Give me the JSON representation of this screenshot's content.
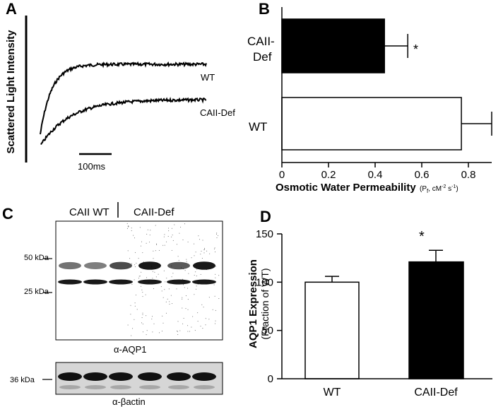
{
  "panels": {
    "A": {
      "letter": "A",
      "ylabel": "Scattered Light Intensity",
      "traces": [
        {
          "name": "WT",
          "label": "WT"
        },
        {
          "name": "CAII-Def",
          "label": "CAII-Def"
        }
      ],
      "scale_bar_label": "100ms"
    },
    "B": {
      "letter": "B",
      "xlabel": "Osmotic Water Permeability",
      "xlabel_units": "(P",
      "xlabel_units_sub": "f",
      "xlabel_units_rest": ", cM",
      "xlabel_units_sup1": "-2",
      "xlabel_units_s": " s",
      "xlabel_units_sup2": "-1",
      "xlabel_units_close": ")",
      "significance": "*",
      "category_labels": {
        "caii_line1": "CAII-",
        "caii_line2": "Def",
        "wt": "WT"
      }
    },
    "C": {
      "letter": "C",
      "group_labels": [
        "CAII WT",
        "CAII-Def"
      ],
      "markers_top": [
        "50 kDa",
        "25 kDa"
      ],
      "marker_bottom": "36 kDa",
      "antibody_top": "α-AQP1",
      "antibody_bottom": "α-βactin"
    },
    "D": {
      "letter": "D",
      "ylabel": "AQP1 Expression",
      "ylabel_sub": "(Fraction of WT)",
      "significance": "*"
    }
  },
  "chart_data": [
    {
      "panel": "B",
      "type": "bar",
      "orientation": "horizontal",
      "categories": [
        "CAII-Def",
        "WT"
      ],
      "values": [
        0.44,
        0.77
      ],
      "errors": [
        0.1,
        0.13
      ],
      "colors": [
        "#000000",
        "#ffffff"
      ],
      "xlabel": "Osmotic Water Permeability (Pf, cM-2 s-1)",
      "xlim": [
        0,
        0.9
      ],
      "xticks": [
        "0",
        "0.2",
        "0.4",
        "0.6",
        "0.8"
      ],
      "grid": false
    },
    {
      "panel": "D",
      "type": "bar",
      "categories": [
        "WT",
        "CAII-Def"
      ],
      "values": [
        100,
        121
      ],
      "errors": [
        6,
        12
      ],
      "colors": [
        "#ffffff",
        "#000000"
      ],
      "ylabel": "AQP1 Expression (Fraction of WT)",
      "ylim": [
        0,
        150
      ],
      "yticks": [
        "0",
        "50",
        "100",
        "150"
      ],
      "grid": false
    }
  ]
}
